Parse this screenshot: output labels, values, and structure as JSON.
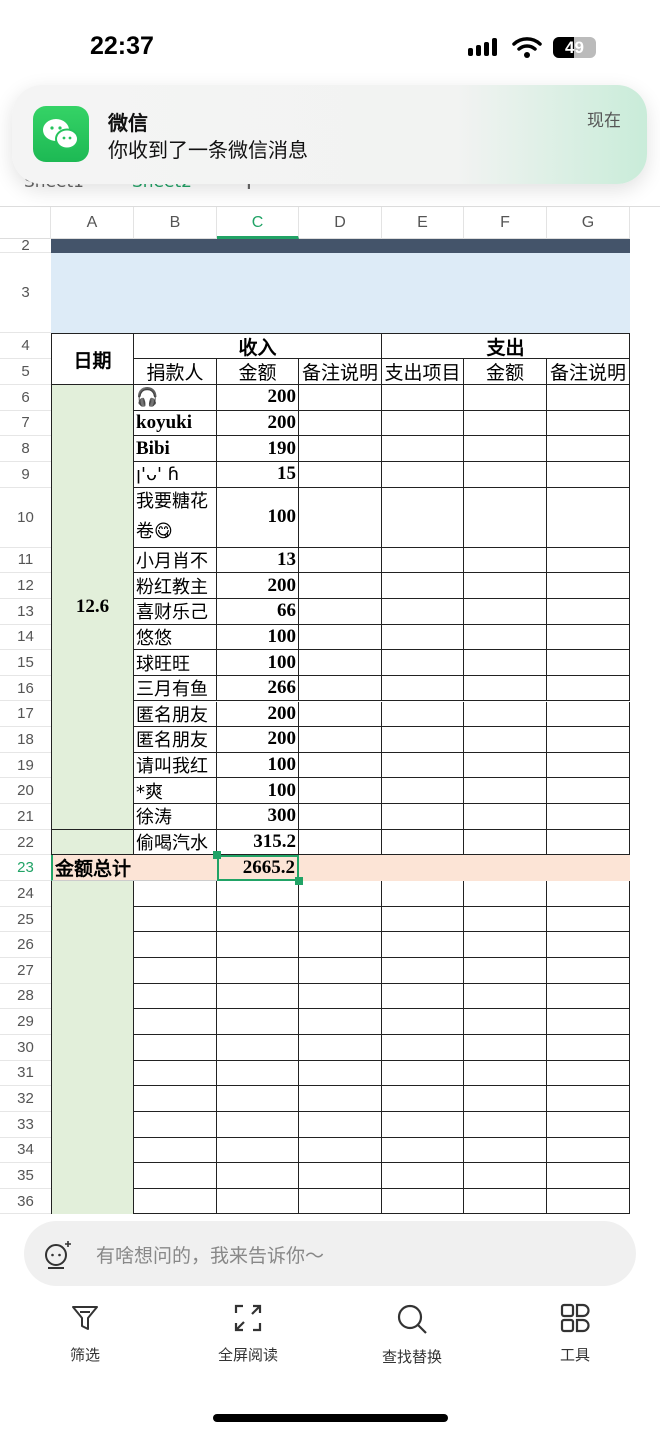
{
  "status": {
    "time": "22:37",
    "battery": "49",
    "battery_level": 49
  },
  "notification": {
    "app": "微信",
    "message": "你收到了一条微信消息",
    "time": "现在",
    "icon": "wechat-icon"
  },
  "sheet_tabs": [
    {
      "label": "Sheet1",
      "active": false
    },
    {
      "label": "Sheet2",
      "active": true
    }
  ],
  "add_sheet": "+",
  "columns": [
    "A",
    "B",
    "C",
    "D",
    "E",
    "F",
    "G"
  ],
  "selected_column": "C",
  "selected_row": "23",
  "rows": [
    "2",
    "3",
    "4",
    "5",
    "6",
    "7",
    "8",
    "9",
    "10",
    "11",
    "12",
    "13",
    "14",
    "15",
    "16",
    "17",
    "18",
    "19",
    "20",
    "21",
    "22",
    "23",
    "24",
    "25",
    "26",
    "27",
    "28",
    "29",
    "30",
    "31",
    "32",
    "33",
    "34",
    "35",
    "36"
  ],
  "table": {
    "date_header": "日期",
    "income_header": "收入",
    "expense_header": "支出",
    "sub_headers": [
      "捐款人",
      "金额",
      "备注说明",
      "支出项目",
      "金额",
      "备注说明"
    ],
    "date_value": "12.6",
    "donations": [
      {
        "donor": "🎧",
        "amount": "200"
      },
      {
        "donor": "koyuki",
        "amount": "200"
      },
      {
        "donor": "Bibi",
        "amount": "190"
      },
      {
        "donor": "ꞁ'ᴗ' ɦ",
        "amount": "15"
      },
      {
        "donor": "我要糖花卷😋",
        "amount": "100"
      },
      {
        "donor": "小月肖不",
        "amount": "13"
      },
      {
        "donor": "粉红教主",
        "amount": "200"
      },
      {
        "donor": "喜财乐己",
        "amount": "66"
      },
      {
        "donor": "悠悠",
        "amount": "100"
      },
      {
        "donor": "球旺旺",
        "amount": "100"
      },
      {
        "donor": "三月有鱼",
        "amount": "266"
      },
      {
        "donor": "匿名朋友",
        "amount": "200"
      },
      {
        "donor": "匿名朋友",
        "amount": "200"
      },
      {
        "donor": "请叫我红",
        "amount": "100"
      },
      {
        "donor": "*爽",
        "amount": "100"
      },
      {
        "donor": "徐涛",
        "amount": "300"
      },
      {
        "donor": "偷喝汽水",
        "amount": "315.2"
      }
    ],
    "total_label": "金额总计",
    "total_value": "2665.2"
  },
  "colors": {
    "title_band": "#44546a",
    "band_light": "#ddebf7",
    "date_fill": "#e2efda",
    "total_fill": "#fce4d6",
    "accent": "#21a366"
  },
  "ai_input": {
    "placeholder": "有啥想问的，我来告诉你～",
    "icon": "ai-assistant-icon"
  },
  "toolbar": [
    {
      "label": "筛选",
      "icon": "filter-icon"
    },
    {
      "label": "全屏阅读",
      "icon": "fullscreen-icon"
    },
    {
      "label": "查找替换",
      "icon": "search-icon"
    },
    {
      "label": "工具",
      "icon": "tools-grid-icon"
    }
  ]
}
